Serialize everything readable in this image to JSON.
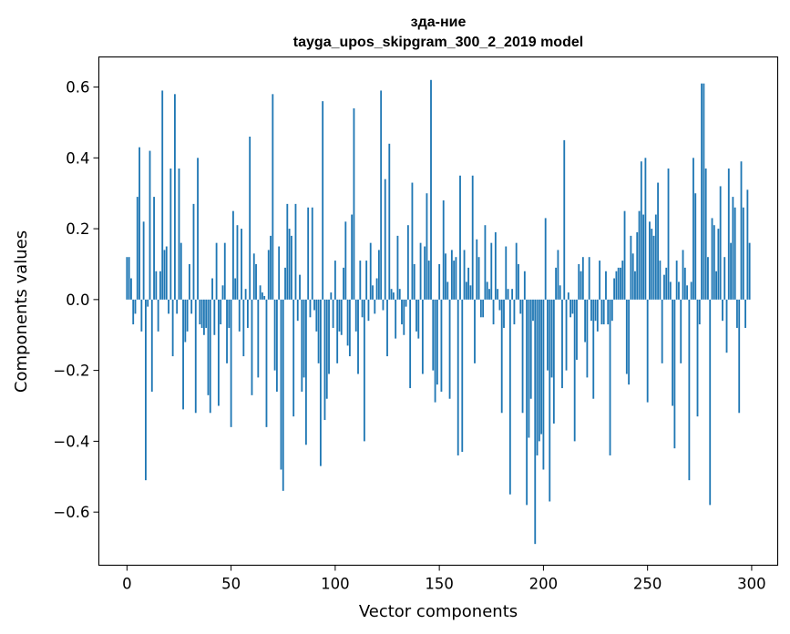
{
  "chart_data": {
    "type": "bar",
    "title": "зда-ние",
    "subtitle": "tayga_upos_skipgram_300_2_2019 model",
    "xlabel": "Vector components",
    "ylabel": "Components values",
    "xlim": [
      -13.5,
      312.5
    ],
    "ylim": [
      -0.75,
      0.685
    ],
    "xticks": [
      0,
      50,
      100,
      150,
      200,
      250,
      300
    ],
    "yticks": [
      -0.6,
      -0.4,
      -0.2,
      0.0,
      0.2,
      0.4,
      0.6
    ],
    "xtick_labels": [
      "0",
      "50",
      "100",
      "150",
      "200",
      "250",
      "300"
    ],
    "ytick_labels": [
      "−0.6",
      "−0.4",
      "−0.2",
      "0.0",
      "0.2",
      "0.4",
      "0.6"
    ],
    "bar_color": "#1f77b4",
    "values": [
      0.12,
      0.12,
      0.06,
      -0.07,
      -0.04,
      0.29,
      0.43,
      -0.09,
      0.22,
      -0.51,
      -0.02,
      0.42,
      -0.26,
      0.29,
      0.08,
      -0.09,
      0.08,
      0.59,
      0.14,
      0.15,
      -0.04,
      0.37,
      -0.16,
      0.58,
      -0.04,
      0.37,
      0.16,
      -0.31,
      -0.12,
      -0.09,
      0.1,
      -0.04,
      0.27,
      -0.32,
      0.4,
      -0.07,
      -0.08,
      -0.1,
      -0.08,
      -0.27,
      -0.32,
      0.06,
      -0.1,
      0.16,
      -0.3,
      -0.07,
      0.04,
      0.16,
      -0.18,
      -0.08,
      -0.36,
      0.25,
      0.06,
      0.21,
      -0.09,
      0.2,
      -0.16,
      0.03,
      -0.08,
      0.46,
      -0.27,
      0.13,
      0.1,
      -0.22,
      0.04,
      0.02,
      0.01,
      -0.36,
      0.14,
      0.18,
      0.58,
      -0.2,
      -0.26,
      0.15,
      -0.48,
      -0.54,
      0.09,
      0.27,
      0.2,
      0.18,
      -0.33,
      0.27,
      -0.06,
      0.07,
      -0.26,
      -0.22,
      -0.41,
      0.26,
      -0.05,
      0.26,
      -0.03,
      -0.09,
      -0.18,
      -0.47,
      0.56,
      -0.34,
      -0.28,
      -0.21,
      0.02,
      -0.08,
      0.11,
      -0.18,
      -0.09,
      -0.1,
      0.09,
      0.22,
      -0.13,
      -0.16,
      0.24,
      0.54,
      -0.09,
      -0.21,
      0.11,
      -0.05,
      -0.4,
      0.11,
      -0.06,
      0.16,
      0.04,
      -0.04,
      0.06,
      0.14,
      0.59,
      -0.03,
      0.34,
      -0.16,
      0.44,
      0.03,
      0.02,
      -0.11,
      0.18,
      0.03,
      -0.07,
      -0.1,
      -0.02,
      0.21,
      -0.25,
      0.33,
      0.1,
      -0.09,
      -0.11,
      0.16,
      -0.21,
      0.15,
      0.3,
      0.11,
      0.62,
      -0.2,
      -0.29,
      -0.24,
      0.1,
      -0.26,
      0.28,
      0.13,
      0.05,
      -0.28,
      0.14,
      0.11,
      0.12,
      -0.44,
      0.35,
      -0.43,
      0.14,
      0.05,
      0.09,
      0.04,
      0.35,
      -0.18,
      0.17,
      0.12,
      -0.05,
      -0.05,
      0.21,
      0.05,
      0.03,
      0.16,
      -0.07,
      0.19,
      0.03,
      -0.03,
      -0.32,
      -0.08,
      0.15,
      0.03,
      -0.55,
      0.03,
      -0.07,
      0.16,
      0.1,
      -0.04,
      -0.32,
      0.08,
      -0.58,
      -0.39,
      -0.28,
      -0.06,
      -0.69,
      -0.44,
      -0.4,
      -0.38,
      -0.48,
      0.23,
      -0.2,
      -0.57,
      -0.22,
      -0.35,
      0.09,
      0.14,
      0.04,
      -0.25,
      0.45,
      -0.2,
      0.02,
      -0.05,
      -0.04,
      -0.4,
      -0.17,
      0.1,
      0.08,
      0.12,
      -0.12,
      -0.22,
      0.12,
      -0.06,
      -0.28,
      -0.06,
      -0.09,
      0.11,
      -0.07,
      -0.07,
      0.08,
      -0.07,
      -0.44,
      -0.06,
      0.06,
      0.08,
      0.09,
      0.09,
      0.11,
      0.25,
      -0.21,
      -0.24,
      0.18,
      0.13,
      0.08,
      0.19,
      0.25,
      0.39,
      0.24,
      0.4,
      -0.29,
      0.22,
      0.2,
      0.18,
      0.24,
      0.33,
      0.11,
      -0.18,
      0.07,
      0.09,
      0.37,
      0.05,
      -0.3,
      -0.42,
      0.11,
      0.05,
      -0.18,
      0.14,
      0.09,
      0.04,
      -0.51,
      0.05,
      0.4,
      0.3,
      -0.33,
      -0.07,
      0.61,
      0.61,
      0.37,
      0.12,
      -0.58,
      0.23,
      0.21,
      0.08,
      0.2,
      0.32,
      -0.06,
      0.12,
      -0.15,
      0.37,
      0.16,
      0.29,
      0.26,
      -0.08,
      -0.32,
      0.39,
      0.26,
      -0.08,
      0.31,
      0.16
    ]
  }
}
